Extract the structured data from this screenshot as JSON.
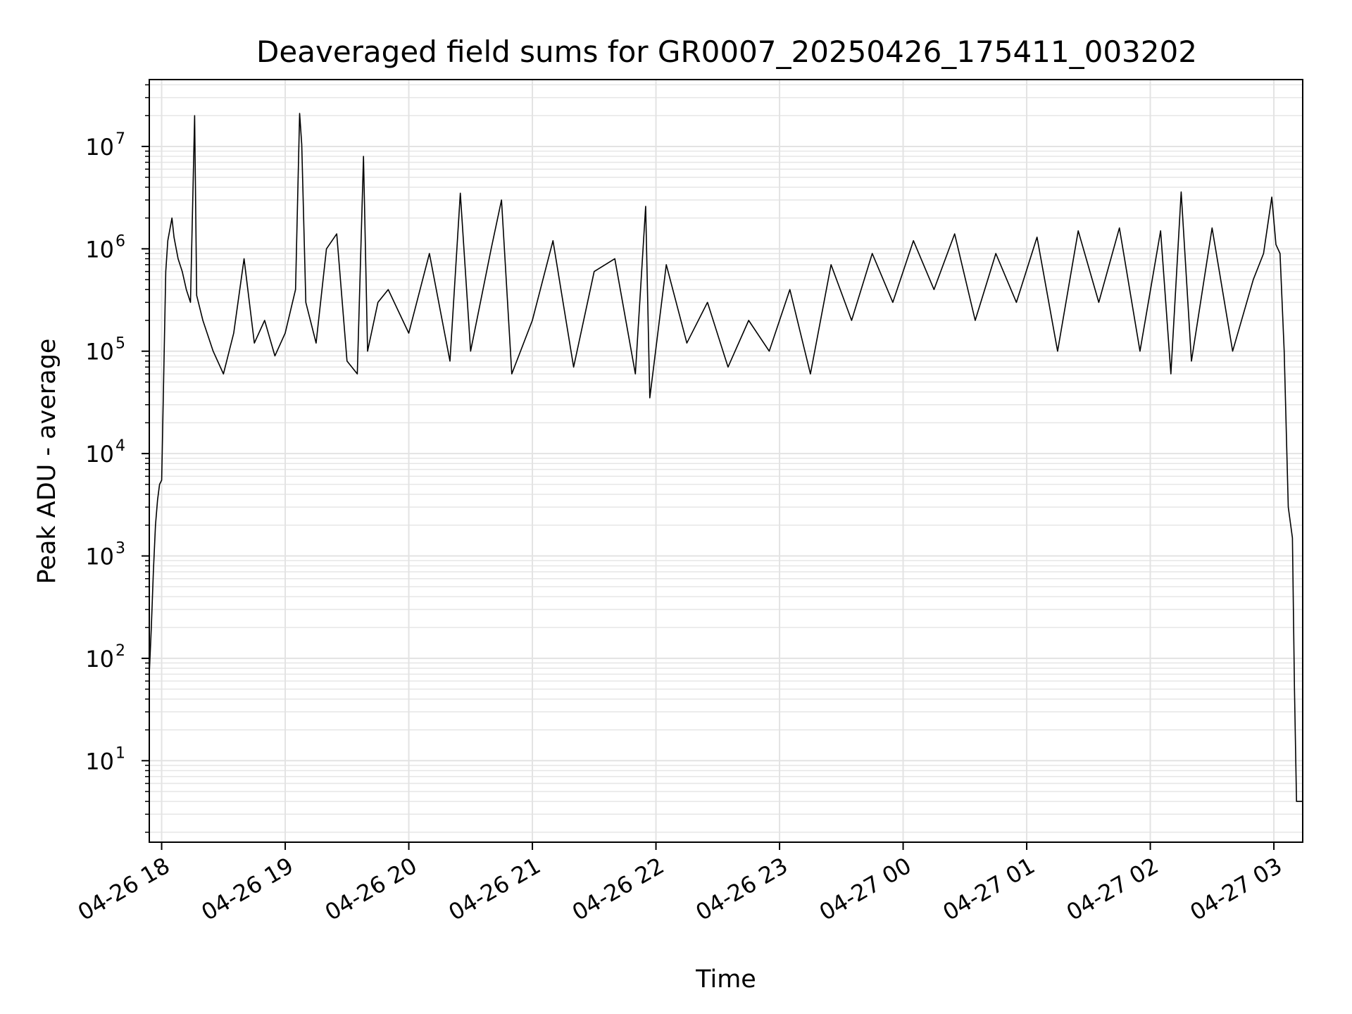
{
  "chart_data": {
    "type": "line",
    "title": "Deaveraged field sums for GR0007_20250426_175411_003202",
    "xlabel": "Time",
    "ylabel": "Peak ADU - average",
    "yscale": "log",
    "xlim": [
      "2025-04-26 17:54",
      "2025-04-27 03:14"
    ],
    "ylim": [
      1.6,
      45000000
    ],
    "grid": true,
    "x_ticks": [
      {
        "value": "2025-04-26 18:00",
        "label": "04-26 18"
      },
      {
        "value": "2025-04-26 19:00",
        "label": "04-26 19"
      },
      {
        "value": "2025-04-26 20:00",
        "label": "04-26 20"
      },
      {
        "value": "2025-04-26 21:00",
        "label": "04-26 21"
      },
      {
        "value": "2025-04-26 22:00",
        "label": "04-26 22"
      },
      {
        "value": "2025-04-26 23:00",
        "label": "04-26 23"
      },
      {
        "value": "2025-04-27 00:00",
        "label": "04-27 00"
      },
      {
        "value": "2025-04-27 01:00",
        "label": "04-27 01"
      },
      {
        "value": "2025-04-27 02:00",
        "label": "04-27 02"
      },
      {
        "value": "2025-04-27 03:00",
        "label": "04-27 03"
      }
    ],
    "y_ticks": [
      {
        "value": 10,
        "base": "10",
        "exp": "1"
      },
      {
        "value": 100,
        "base": "10",
        "exp": "2"
      },
      {
        "value": 1000,
        "base": "10",
        "exp": "3"
      },
      {
        "value": 10000,
        "base": "10",
        "exp": "4"
      },
      {
        "value": 100000,
        "base": "10",
        "exp": "5"
      },
      {
        "value": 1000000,
        "base": "10",
        "exp": "6"
      },
      {
        "value": 10000000,
        "base": "10",
        "exp": "7"
      }
    ],
    "series": [
      {
        "color": "#000000",
        "points": [
          [
            "2025-04-26 17:54",
            3.5
          ],
          [
            "2025-04-26 17:54",
            70
          ],
          [
            "2025-04-26 17:55",
            200
          ],
          [
            "2025-04-26 17:56",
            700
          ],
          [
            "2025-04-26 17:57",
            2000
          ],
          [
            "2025-04-26 17:58",
            3500
          ],
          [
            "2025-04-26 17:59",
            5000
          ],
          [
            "2025-04-26 18:00",
            5500
          ],
          [
            "2025-04-26 18:02",
            600000
          ],
          [
            "2025-04-26 18:03",
            1200000
          ],
          [
            "2025-04-26 18:05",
            2000000
          ],
          [
            "2025-04-26 18:06",
            1300000
          ],
          [
            "2025-04-26 18:08",
            800000
          ],
          [
            "2025-04-26 18:10",
            600000
          ],
          [
            "2025-04-26 18:12",
            400000
          ],
          [
            "2025-04-26 18:14",
            300000
          ],
          [
            "2025-04-26 18:16",
            20000000
          ],
          [
            "2025-04-26 18:17",
            350000
          ],
          [
            "2025-04-26 18:20",
            200000
          ],
          [
            "2025-04-26 18:25",
            100000
          ],
          [
            "2025-04-26 18:30",
            60000
          ],
          [
            "2025-04-26 18:35",
            150000
          ],
          [
            "2025-04-26 18:40",
            800000
          ],
          [
            "2025-04-26 18:45",
            120000
          ],
          [
            "2025-04-26 18:50",
            200000
          ],
          [
            "2025-04-26 18:55",
            90000
          ],
          [
            "2025-04-26 19:00",
            150000
          ],
          [
            "2025-04-26 19:05",
            400000
          ],
          [
            "2025-04-26 19:07",
            21000000
          ],
          [
            "2025-04-26 19:08",
            10500000
          ],
          [
            "2025-04-26 19:10",
            300000
          ],
          [
            "2025-04-26 19:15",
            120000
          ],
          [
            "2025-04-26 19:20",
            1000000
          ],
          [
            "2025-04-26 19:25",
            1400000
          ],
          [
            "2025-04-26 19:30",
            80000
          ],
          [
            "2025-04-26 19:35",
            60000
          ],
          [
            "2025-04-26 19:38",
            8000000
          ],
          [
            "2025-04-26 19:40",
            100000
          ],
          [
            "2025-04-26 19:45",
            300000
          ],
          [
            "2025-04-26 19:50",
            400000
          ],
          [
            "2025-04-26 20:00",
            150000
          ],
          [
            "2025-04-26 20:10",
            900000
          ],
          [
            "2025-04-26 20:20",
            80000
          ],
          [
            "2025-04-26 20:25",
            3500000
          ],
          [
            "2025-04-26 20:30",
            100000
          ],
          [
            "2025-04-26 20:40",
            1000000
          ],
          [
            "2025-04-26 20:45",
            3000000
          ],
          [
            "2025-04-26 20:50",
            60000
          ],
          [
            "2025-04-26 21:00",
            200000
          ],
          [
            "2025-04-26 21:10",
            1200000
          ],
          [
            "2025-04-26 21:20",
            70000
          ],
          [
            "2025-04-26 21:30",
            600000
          ],
          [
            "2025-04-26 21:40",
            800000
          ],
          [
            "2025-04-26 21:50",
            60000
          ],
          [
            "2025-04-26 21:55",
            2600000
          ],
          [
            "2025-04-26 21:57",
            35000
          ],
          [
            "2025-04-26 22:05",
            700000
          ],
          [
            "2025-04-26 22:15",
            120000
          ],
          [
            "2025-04-26 22:25",
            300000
          ],
          [
            "2025-04-26 22:35",
            70000
          ],
          [
            "2025-04-26 22:45",
            200000
          ],
          [
            "2025-04-26 22:55",
            100000
          ],
          [
            "2025-04-26 23:05",
            400000
          ],
          [
            "2025-04-26 23:15",
            60000
          ],
          [
            "2025-04-26 23:25",
            700000
          ],
          [
            "2025-04-26 23:35",
            200000
          ],
          [
            "2025-04-26 23:45",
            900000
          ],
          [
            "2025-04-26 23:55",
            300000
          ],
          [
            "2025-04-27 00:05",
            1200000
          ],
          [
            "2025-04-27 00:15",
            400000
          ],
          [
            "2025-04-27 00:25",
            1400000
          ],
          [
            "2025-04-27 00:35",
            200000
          ],
          [
            "2025-04-27 00:45",
            900000
          ],
          [
            "2025-04-27 00:55",
            300000
          ],
          [
            "2025-04-27 01:05",
            1300000
          ],
          [
            "2025-04-27 01:15",
            100000
          ],
          [
            "2025-04-27 01:25",
            1500000
          ],
          [
            "2025-04-27 01:35",
            300000
          ],
          [
            "2025-04-27 01:45",
            1600000
          ],
          [
            "2025-04-27 01:55",
            100000
          ],
          [
            "2025-04-27 02:05",
            1500000
          ],
          [
            "2025-04-27 02:10",
            60000
          ],
          [
            "2025-04-27 02:15",
            3600000
          ],
          [
            "2025-04-27 02:20",
            80000
          ],
          [
            "2025-04-27 02:30",
            1600000
          ],
          [
            "2025-04-27 02:40",
            100000
          ],
          [
            "2025-04-27 02:50",
            500000
          ],
          [
            "2025-04-27 02:55",
            900000
          ],
          [
            "2025-04-27 02:59",
            3200000
          ],
          [
            "2025-04-27 03:01",
            1100000
          ],
          [
            "2025-04-27 03:03",
            900000
          ],
          [
            "2025-04-27 03:05",
            100000
          ],
          [
            "2025-04-27 03:07",
            3000
          ],
          [
            "2025-04-27 03:09",
            1500
          ],
          [
            "2025-04-27 03:10",
            50
          ],
          [
            "2025-04-27 03:11",
            4
          ],
          [
            "2025-04-27 03:14",
            4
          ]
        ]
      }
    ]
  }
}
